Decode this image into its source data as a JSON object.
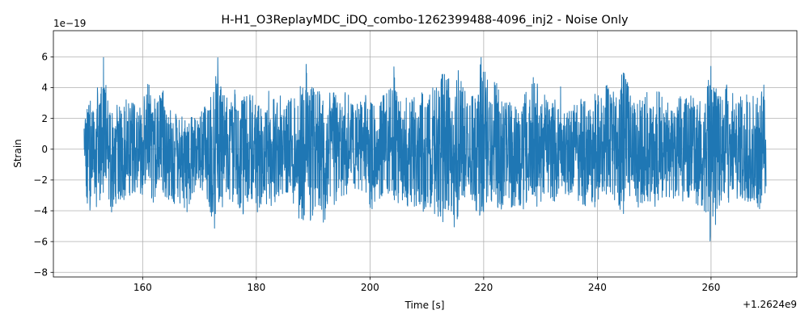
{
  "chart_data": {
    "type": "line",
    "title": "H-H1_O3ReplayMDC_iDQ_combo-1262399488-4096_inj2 - Noise Only",
    "xlabel": "Time [s]",
    "ylabel": "Strain",
    "x_offset_label": "+1.2624e9",
    "y_exponent_label": "1e−19",
    "xlim": [
      144.3,
      275.1
    ],
    "ylim": [
      -8.3,
      7.7
    ],
    "x_ticks": [
      160,
      180,
      200,
      220,
      240,
      260
    ],
    "x_tick_labels": [
      "160",
      "180",
      "200",
      "220",
      "240",
      "260"
    ],
    "y_ticks": [
      -8,
      -6,
      -4,
      -2,
      0,
      2,
      4,
      6
    ],
    "y_tick_labels": [
      "−8",
      "−6",
      "−4",
      "−2",
      "0",
      "2",
      "4",
      "6"
    ],
    "grid": true,
    "line_color": "#1f77b4",
    "series": [
      {
        "x_start": 149.7,
        "x_end": 269.7,
        "envelope_upper": [
          [
            149.7,
            1.9
          ],
          [
            150.2,
            3.3
          ],
          [
            151.0,
            3.1
          ],
          [
            151.6,
            5.2
          ],
          [
            152.4,
            4.0
          ],
          [
            153.0,
            6.6
          ],
          [
            153.7,
            3.6
          ],
          [
            154.6,
            2.7
          ],
          [
            155.5,
            3.3
          ],
          [
            156.3,
            2.6
          ],
          [
            157.2,
            3.4
          ],
          [
            158.1,
            3.3
          ],
          [
            159.1,
            2.4
          ],
          [
            160.1,
            3.2
          ],
          [
            161.0,
            4.6
          ],
          [
            161.8,
            3.1
          ],
          [
            162.6,
            3.6
          ],
          [
            163.6,
            3.8
          ],
          [
            164.6,
            2.6
          ],
          [
            165.7,
            2.5
          ],
          [
            166.6,
            2.1
          ],
          [
            167.6,
            2.6
          ],
          [
            168.6,
            2.3
          ],
          [
            169.6,
            2.0
          ],
          [
            170.6,
            2.6
          ],
          [
            171.6,
            3.1
          ],
          [
            172.6,
            4.0
          ],
          [
            173.2,
            6.6
          ],
          [
            173.9,
            3.7
          ],
          [
            174.8,
            3.4
          ],
          [
            175.7,
            4.1
          ],
          [
            176.6,
            3.7
          ],
          [
            177.6,
            3.2
          ],
          [
            178.4,
            3.9
          ],
          [
            179.3,
            3.5
          ],
          [
            180.2,
            3.0
          ],
          [
            181.2,
            2.5
          ],
          [
            182.2,
            4.0
          ],
          [
            183.1,
            3.3
          ],
          [
            184.1,
            3.9
          ],
          [
            185.1,
            3.1
          ],
          [
            186.0,
            3.4
          ],
          [
            187.0,
            3.3
          ],
          [
            188.0,
            4.4
          ],
          [
            188.8,
            5.9
          ],
          [
            189.7,
            4.2
          ],
          [
            190.6,
            4.0
          ],
          [
            191.6,
            3.5
          ],
          [
            192.6,
            3.4
          ],
          [
            193.6,
            4.2
          ],
          [
            194.5,
            3.0
          ],
          [
            195.5,
            4.2
          ],
          [
            196.4,
            3.4
          ],
          [
            197.3,
            2.8
          ],
          [
            198.3,
            3.1
          ],
          [
            199.3,
            3.7
          ],
          [
            200.2,
            3.0
          ],
          [
            201.3,
            2.6
          ],
          [
            202.2,
            3.5
          ],
          [
            203.1,
            3.7
          ],
          [
            204.1,
            5.9
          ],
          [
            205.1,
            3.3
          ],
          [
            206.1,
            3.0
          ],
          [
            207.0,
            4.1
          ],
          [
            207.9,
            3.6
          ],
          [
            208.9,
            4.1
          ],
          [
            209.8,
            3.1
          ],
          [
            210.8,
            4.0
          ],
          [
            211.7,
            4.8
          ],
          [
            212.6,
            5.2
          ],
          [
            213.6,
            4.8
          ],
          [
            214.6,
            4.5
          ],
          [
            215.3,
            5.6
          ],
          [
            216.1,
            4.5
          ],
          [
            217.1,
            3.3
          ],
          [
            218.1,
            3.9
          ],
          [
            219.1,
            4.4
          ],
          [
            219.6,
            6.4
          ],
          [
            220.5,
            4.9
          ],
          [
            221.5,
            4.0
          ],
          [
            222.1,
            4.6
          ],
          [
            223.1,
            3.5
          ],
          [
            224.0,
            3.5
          ],
          [
            225.0,
            3.0
          ],
          [
            226.0,
            2.6
          ],
          [
            227.0,
            3.6
          ],
          [
            228.0,
            4.0
          ],
          [
            229.0,
            5.1
          ],
          [
            229.6,
            4.4
          ],
          [
            230.6,
            3.6
          ],
          [
            231.6,
            3.1
          ],
          [
            232.6,
            3.4
          ],
          [
            233.6,
            4.2
          ],
          [
            234.6,
            2.9
          ],
          [
            235.6,
            2.7
          ],
          [
            236.6,
            3.7
          ],
          [
            237.6,
            3.2
          ],
          [
            238.6,
            2.8
          ],
          [
            239.6,
            3.9
          ],
          [
            240.6,
            3.8
          ],
          [
            241.6,
            4.3
          ],
          [
            242.5,
            3.6
          ],
          [
            243.6,
            4.5
          ],
          [
            244.6,
            5.8
          ],
          [
            245.6,
            4.0
          ],
          [
            246.6,
            3.1
          ],
          [
            247.6,
            3.4
          ],
          [
            248.6,
            4.0
          ],
          [
            249.6,
            3.4
          ],
          [
            250.6,
            4.1
          ],
          [
            251.6,
            3.5
          ],
          [
            252.6,
            3.1
          ],
          [
            253.6,
            3.3
          ],
          [
            254.6,
            3.6
          ],
          [
            255.6,
            3.3
          ],
          [
            256.6,
            3.6
          ],
          [
            257.6,
            3.0
          ],
          [
            258.5,
            3.3
          ],
          [
            259.4,
            4.2
          ],
          [
            260.1,
            7.0
          ],
          [
            260.9,
            4.2
          ],
          [
            261.8,
            3.3
          ],
          [
            262.8,
            4.3
          ],
          [
            263.8,
            3.9
          ],
          [
            264.7,
            3.4
          ],
          [
            265.7,
            4.1
          ],
          [
            266.6,
            3.3
          ],
          [
            267.6,
            3.9
          ],
          [
            268.4,
            3.1
          ],
          [
            269.3,
            4.3
          ],
          [
            269.7,
            1.2
          ]
        ],
        "envelope_lower": [
          [
            149.7,
            -1.8
          ],
          [
            150.2,
            -4.9
          ],
          [
            151.0,
            -3.6
          ],
          [
            151.6,
            -4.0
          ],
          [
            152.4,
            -3.3
          ],
          [
            153.0,
            -3.5
          ],
          [
            153.7,
            -3.2
          ],
          [
            154.6,
            -4.3
          ],
          [
            155.5,
            -3.3
          ],
          [
            156.3,
            -3.6
          ],
          [
            157.2,
            -3.2
          ],
          [
            158.1,
            -2.9
          ],
          [
            159.1,
            -3.4
          ],
          [
            160.1,
            -3.3
          ],
          [
            161.0,
            -3.1
          ],
          [
            161.8,
            -3.6
          ],
          [
            162.6,
            -2.8
          ],
          [
            163.6,
            -3.0
          ],
          [
            164.6,
            -3.4
          ],
          [
            165.7,
            -3.7
          ],
          [
            166.6,
            -3.6
          ],
          [
            167.6,
            -4.2
          ],
          [
            168.6,
            -3.6
          ],
          [
            169.6,
            -2.5
          ],
          [
            170.6,
            -2.8
          ],
          [
            171.6,
            -3.5
          ],
          [
            172.6,
            -5.4
          ],
          [
            173.2,
            -4.0
          ],
          [
            173.9,
            -3.8
          ],
          [
            174.8,
            -3.5
          ],
          [
            175.7,
            -3.5
          ],
          [
            176.6,
            -3.3
          ],
          [
            177.6,
            -4.9
          ],
          [
            178.4,
            -3.5
          ],
          [
            179.3,
            -3.2
          ],
          [
            180.2,
            -4.2
          ],
          [
            181.2,
            -3.4
          ],
          [
            182.2,
            -4.2
          ],
          [
            183.1,
            -3.9
          ],
          [
            184.1,
            -3.7
          ],
          [
            185.1,
            -3.0
          ],
          [
            186.0,
            -3.4
          ],
          [
            187.0,
            -4.2
          ],
          [
            188.0,
            -4.8
          ],
          [
            188.8,
            -5.8
          ],
          [
            189.7,
            -4.5
          ],
          [
            190.6,
            -3.8
          ],
          [
            191.6,
            -4.4
          ],
          [
            191.9,
            -6.7
          ],
          [
            192.6,
            -3.6
          ],
          [
            193.6,
            -4.3
          ],
          [
            194.5,
            -3.0
          ],
          [
            195.5,
            -3.8
          ],
          [
            196.4,
            -2.8
          ],
          [
            197.3,
            -3.4
          ],
          [
            198.3,
            -3.4
          ],
          [
            199.3,
            -3.2
          ],
          [
            200.2,
            -4.2
          ],
          [
            201.3,
            -3.4
          ],
          [
            202.2,
            -3.5
          ],
          [
            203.1,
            -3.2
          ],
          [
            204.1,
            -3.2
          ],
          [
            205.1,
            -4.1
          ],
          [
            206.1,
            -3.6
          ],
          [
            207.0,
            -4.0
          ],
          [
            207.9,
            -3.8
          ],
          [
            208.9,
            -3.9
          ],
          [
            209.8,
            -4.5
          ],
          [
            210.8,
            -3.9
          ],
          [
            211.7,
            -4.4
          ],
          [
            212.6,
            -5.0
          ],
          [
            213.6,
            -4.8
          ],
          [
            214.6,
            -5.3
          ],
          [
            215.0,
            -6.2
          ],
          [
            215.6,
            -4.2
          ],
          [
            216.1,
            -3.7
          ],
          [
            217.1,
            -3.5
          ],
          [
            218.1,
            -3.7
          ],
          [
            219.1,
            -4.2
          ],
          [
            219.6,
            -4.9
          ],
          [
            220.5,
            -4.5
          ],
          [
            221.5,
            -3.4
          ],
          [
            222.1,
            -3.6
          ],
          [
            223.1,
            -4.4
          ],
          [
            224.0,
            -3.3
          ],
          [
            225.0,
            -4.0
          ],
          [
            226.0,
            -3.6
          ],
          [
            227.0,
            -3.9
          ],
          [
            228.0,
            -3.5
          ],
          [
            229.0,
            -3.3
          ],
          [
            229.6,
            -4.2
          ],
          [
            230.6,
            -3.1
          ],
          [
            231.6,
            -3.3
          ],
          [
            232.6,
            -3.4
          ],
          [
            233.6,
            -2.8
          ],
          [
            234.6,
            -3.0
          ],
          [
            235.6,
            -2.9
          ],
          [
            236.6,
            -3.4
          ],
          [
            237.6,
            -4.0
          ],
          [
            238.6,
            -3.3
          ],
          [
            239.6,
            -3.8
          ],
          [
            240.6,
            -3.2
          ],
          [
            241.6,
            -3.4
          ],
          [
            242.5,
            -3.3
          ],
          [
            243.6,
            -3.9
          ],
          [
            244.6,
            -4.2
          ],
          [
            245.6,
            -3.0
          ],
          [
            246.6,
            -3.3
          ],
          [
            247.6,
            -4.1
          ],
          [
            248.6,
            -3.3
          ],
          [
            249.6,
            -4.0
          ],
          [
            250.6,
            -3.6
          ],
          [
            251.6,
            -3.7
          ],
          [
            252.6,
            -3.1
          ],
          [
            253.6,
            -3.3
          ],
          [
            254.6,
            -3.5
          ],
          [
            255.6,
            -3.3
          ],
          [
            256.6,
            -3.4
          ],
          [
            257.6,
            -3.6
          ],
          [
            258.5,
            -4.2
          ],
          [
            259.4,
            -4.4
          ],
          [
            260.1,
            -7.4
          ],
          [
            260.9,
            -4.6
          ],
          [
            261.8,
            -3.6
          ],
          [
            262.8,
            -3.8
          ],
          [
            263.8,
            -3.4
          ],
          [
            264.7,
            -3.6
          ],
          [
            265.7,
            -3.4
          ],
          [
            266.6,
            -3.5
          ],
          [
            267.6,
            -3.5
          ],
          [
            268.4,
            -4.4
          ],
          [
            269.3,
            -4.0
          ],
          [
            269.7,
            -3.1
          ]
        ]
      }
    ]
  }
}
